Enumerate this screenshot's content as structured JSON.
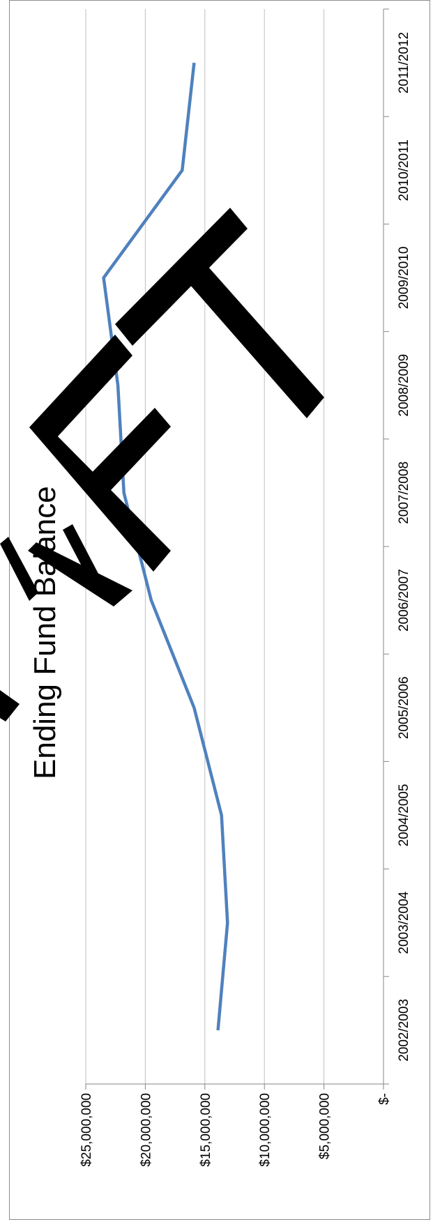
{
  "chart_data": {
    "type": "line",
    "title": "Ending Fund Balance",
    "watermark": "DRAFT",
    "categories": [
      "2002/2003",
      "2003/2004",
      "2004/2005",
      "2005/2006",
      "2006/2007",
      "2007/2008",
      "2008/2009",
      "2009/2010",
      "2010/2011",
      "2011/2012"
    ],
    "series": [
      {
        "values": [
          13900000,
          13100000,
          13600000,
          15900000,
          19500000,
          21800000,
          22300000,
          23500000,
          16900000,
          15900000
        ]
      }
    ],
    "ylim": [
      0,
      25000000
    ],
    "y_ticks": [
      0,
      5000000,
      10000000,
      15000000,
      20000000,
      25000000
    ],
    "y_tick_labels": [
      "$-",
      "$5,000,000",
      "$10,000,000",
      "$15,000,000",
      "$20,000,000",
      "$25,000,000"
    ],
    "grid": true,
    "orientation": "rotated-90-clockwise",
    "colors": {
      "line": "#4f81bd",
      "grid": "#bfbfbf",
      "watermark": "#000000"
    }
  }
}
